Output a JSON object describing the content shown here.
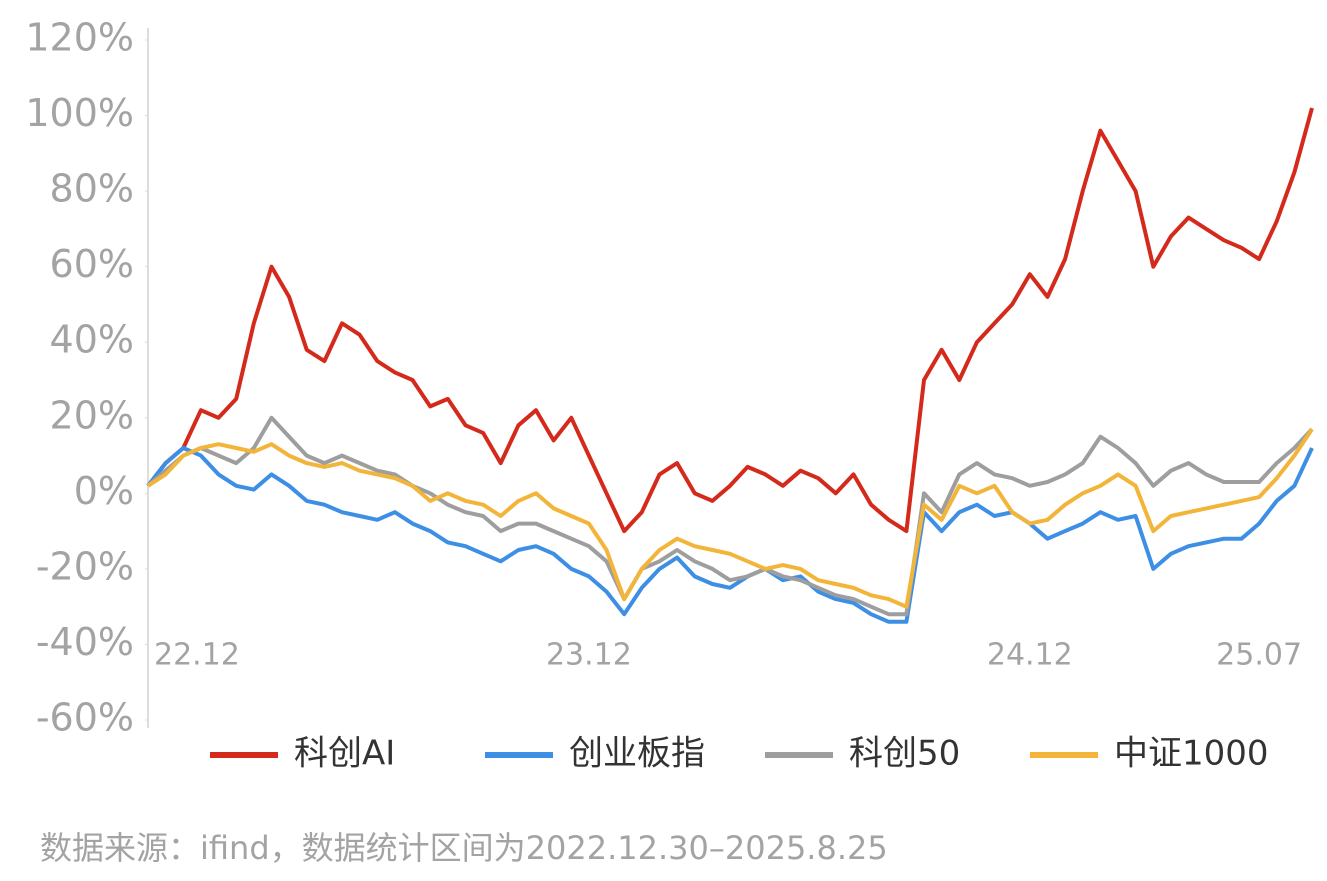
{
  "chart_data": {
    "type": "line",
    "categories": [
      "22.12",
      null,
      null,
      null,
      null,
      null,
      null,
      null,
      null,
      null,
      null,
      null,
      null,
      null,
      null,
      null,
      null,
      null,
      null,
      null,
      null,
      null,
      null,
      null,
      null,
      "23.12",
      null,
      null,
      null,
      null,
      null,
      null,
      null,
      null,
      null,
      null,
      null,
      null,
      null,
      null,
      null,
      null,
      null,
      null,
      null,
      null,
      null,
      null,
      null,
      null,
      "24.12",
      null,
      null,
      null,
      null,
      null,
      null,
      null,
      null,
      null,
      null,
      null,
      null,
      "25.07",
      null,
      null,
      null
    ],
    "series": [
      {
        "name": "科创AI",
        "color": "#d42a1c",
        "values": [
          2,
          8,
          12,
          22,
          20,
          25,
          45,
          60,
          52,
          38,
          35,
          45,
          42,
          35,
          32,
          30,
          23,
          25,
          18,
          16,
          8,
          18,
          22,
          14,
          20,
          10,
          0,
          -10,
          -5,
          5,
          8,
          0,
          -2,
          2,
          7,
          5,
          2,
          6,
          4,
          0,
          5,
          -3,
          -7,
          -10,
          30,
          38,
          30,
          40,
          45,
          50,
          58,
          52,
          62,
          80,
          96,
          88,
          80,
          60,
          68,
          73,
          70,
          67,
          65,
          62,
          72,
          85,
          102
        ]
      },
      {
        "name": "创业板指",
        "color": "#3d8fe6",
        "values": [
          2,
          8,
          12,
          10,
          5,
          2,
          1,
          5,
          2,
          -2,
          -3,
          -5,
          -6,
          -7,
          -5,
          -8,
          -10,
          -13,
          -14,
          -16,
          -18,
          -15,
          -14,
          -16,
          -20,
          -22,
          -26,
          -32,
          -25,
          -20,
          -17,
          -22,
          -24,
          -25,
          -22,
          -20,
          -23,
          -22,
          -26,
          -28,
          -29,
          -32,
          -34,
          -34,
          -5,
          -10,
          -5,
          -3,
          -6,
          -5,
          -8,
          -12,
          -10,
          -8,
          -5,
          -7,
          -6,
          -20,
          -16,
          -14,
          -13,
          -12,
          -12,
          -8,
          -2,
          2,
          12
        ]
      },
      {
        "name": "科创50",
        "color": "#9e9e9e",
        "values": [
          2,
          6,
          10,
          12,
          10,
          8,
          12,
          20,
          15,
          10,
          8,
          10,
          8,
          6,
          5,
          2,
          0,
          -3,
          -5,
          -6,
          -10,
          -8,
          -8,
          -10,
          -12,
          -14,
          -18,
          -28,
          -20,
          -18,
          -15,
          -18,
          -20,
          -23,
          -22,
          -20,
          -22,
          -23,
          -25,
          -27,
          -28,
          -30,
          -32,
          -32,
          0,
          -5,
          5,
          8,
          5,
          4,
          2,
          3,
          5,
          8,
          15,
          12,
          8,
          2,
          6,
          8,
          5,
          3,
          3,
          3,
          8,
          12,
          17
        ]
      },
      {
        "name": "中证1000",
        "color": "#f2b53a",
        "values": [
          2,
          5,
          10,
          12,
          13,
          12,
          11,
          13,
          10,
          8,
          7,
          8,
          6,
          5,
          4,
          2,
          -2,
          0,
          -2,
          -3,
          -6,
          -2,
          0,
          -4,
          -6,
          -8,
          -15,
          -28,
          -20,
          -15,
          -12,
          -14,
          -15,
          -16,
          -18,
          -20,
          -19,
          -20,
          -23,
          -24,
          -25,
          -27,
          -28,
          -30,
          -3,
          -7,
          2,
          0,
          2,
          -5,
          -8,
          -7,
          -3,
          0,
          2,
          5,
          2,
          -10,
          -6,
          -5,
          -4,
          -3,
          -2,
          -1,
          4,
          10,
          17
        ]
      }
    ],
    "ylim": [
      -60,
      120
    ],
    "yticks": [
      {
        "value": -60,
        "label": "-60%"
      },
      {
        "value": -40,
        "label": "-40%"
      },
      {
        "value": -20,
        "label": "-20%"
      },
      {
        "value": 0,
        "label": "0%"
      },
      {
        "value": 20,
        "label": "20%"
      },
      {
        "value": 40,
        "label": "40%"
      },
      {
        "value": 60,
        "label": "60%"
      },
      {
        "value": 80,
        "label": "80%"
      },
      {
        "value": 100,
        "label": "100%"
      },
      {
        "value": 120,
        "label": "120%"
      }
    ],
    "grid": false,
    "legend": "bottom",
    "source": "数据来源：ifind，数据统计区间为2022.12.30–2025.8.25"
  }
}
